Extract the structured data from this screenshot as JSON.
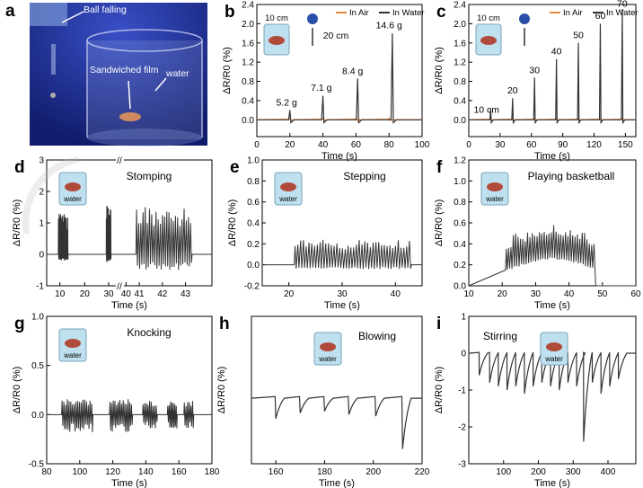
{
  "photo": {
    "label": "a",
    "ball_text": "Ball falling",
    "film_text": "Sandwiched film",
    "water_text": "water"
  },
  "icons": {
    "cup_text": "water"
  },
  "colors": {
    "air": "#e8853a",
    "water": "#333333",
    "photo_bg": "#1c2f95"
  },
  "chart_data": [
    {
      "id": "b",
      "type": "line",
      "xlim": [
        0,
        100
      ],
      "xticks": [
        0,
        20,
        40,
        60,
        80,
        100
      ],
      "ylim": [
        -0.35,
        2.4
      ],
      "yticks": [
        0.0,
        0.4,
        0.8,
        1.2,
        1.6,
        2.0,
        2.4
      ],
      "xlabel": "Time (s)",
      "ylabel": "ΔR/R0 (%)",
      "legend": [
        "In Air",
        "In Water"
      ],
      "series": [
        {
          "name": "In Air",
          "peaks": [
            [
              20,
              0.03
            ],
            [
              40,
              0.03
            ],
            [
              60,
              0.03
            ],
            [
              80,
              0.03
            ]
          ]
        },
        {
          "name": "In Water",
          "peaks": [
            [
              20,
              0.2
            ],
            [
              40,
              0.5
            ],
            [
              61,
              0.86
            ],
            [
              82,
              1.8
            ]
          ]
        }
      ],
      "annotations": [
        {
          "x": 18,
          "y": 0.3,
          "text": "5.2 g"
        },
        {
          "x": 39,
          "y": 0.6,
          "text": "7.1 g"
        },
        {
          "x": 58,
          "y": 0.95,
          "text": "8.4 g"
        },
        {
          "x": 80,
          "y": 1.9,
          "text": "14.6 g"
        }
      ],
      "inset": {
        "height_label": "10 cm",
        "distance_label": "20 cm"
      }
    },
    {
      "id": "c",
      "type": "line",
      "xlim": [
        0,
        160
      ],
      "xticks": [
        0,
        30,
        60,
        90,
        120,
        150
      ],
      "ylim": [
        -0.35,
        2.4
      ],
      "yticks": [
        0.0,
        0.4,
        0.8,
        1.2,
        1.6,
        2.0,
        2.4
      ],
      "xlabel": "Time (s)",
      "ylabel": "ΔR/R0 (%)",
      "legend": [
        "In Air",
        "In Water"
      ],
      "series": [
        {
          "name": "In Air",
          "peaks": [
            [
              21,
              0.03
            ],
            [
              42,
              0.03
            ],
            [
              63,
              0.03
            ],
            [
              84,
              0.03
            ],
            [
              105,
              0.03
            ],
            [
              126,
              0.03
            ],
            [
              147,
              0.03
            ]
          ]
        },
        {
          "name": "In Water",
          "peaks": [
            [
              21,
              0.22
            ],
            [
              42,
              0.45
            ],
            [
              63,
              0.88
            ],
            [
              84,
              1.26
            ],
            [
              105,
              1.6
            ],
            [
              126,
              2.0
            ],
            [
              147,
              2.3
            ]
          ]
        }
      ],
      "annotations": [
        {
          "x": 17,
          "y": 0.15,
          "text": "10 cm"
        },
        {
          "x": 42,
          "y": 0.55,
          "text": "20"
        },
        {
          "x": 63,
          "y": 0.97,
          "text": "30"
        },
        {
          "x": 84,
          "y": 1.36,
          "text": "40"
        },
        {
          "x": 105,
          "y": 1.7,
          "text": "50"
        },
        {
          "x": 126,
          "y": 2.1,
          "text": "60"
        },
        {
          "x": 147,
          "y": 2.35,
          "text": "70"
        }
      ],
      "inset": {
        "height_label": "10 cm"
      }
    },
    {
      "id": "d",
      "type": "line",
      "xlim": [
        0,
        100
      ],
      "xbreak_text": "//",
      "xticks_labeled": [
        [
          8,
          "10"
        ],
        [
          23,
          "20"
        ],
        [
          37.5,
          "30"
        ],
        [
          48,
          "40"
        ],
        [
          56,
          "41"
        ],
        [
          70,
          "42"
        ],
        [
          84,
          "43"
        ]
      ],
      "ylim": [
        -1,
        3
      ],
      "yticks": [
        -1,
        0,
        1,
        2,
        3
      ],
      "xlabel": "Time (s)",
      "ylabel": "ΔR/R0 (%)",
      "title": "Stomping",
      "bursts": [
        {
          "start": 7,
          "end": 13,
          "n": 14,
          "amp": 1.3,
          "neg": 0.2
        },
        {
          "start": 36,
          "end": 39,
          "n": 10,
          "amp": 1.6,
          "neg": 0.25
        },
        {
          "start": 54,
          "end": 88,
          "n": 26,
          "amp": 1.5,
          "neg": 0.5
        }
      ]
    },
    {
      "id": "e",
      "type": "line",
      "xlim": [
        15,
        45
      ],
      "xticks": [
        20,
        30,
        40
      ],
      "ylim": [
        -0.2,
        1.0
      ],
      "yticks": [
        -0.2,
        0.0,
        0.2,
        0.4,
        0.6,
        0.8,
        1.0
      ],
      "xlabel": "Time (s)",
      "ylabel": "ΔR/R0 (%)",
      "title": "Stepping",
      "bursts": [
        {
          "start": 21,
          "end": 43,
          "n": 42,
          "amp": 0.24,
          "neg": 0.04
        }
      ]
    },
    {
      "id": "f",
      "type": "line",
      "xlim": [
        10,
        60
      ],
      "xticks": [
        10,
        20,
        30,
        40,
        50,
        60
      ],
      "ylim": [
        0.0,
        1.2
      ],
      "yticks": [
        0.0,
        0.2,
        0.4,
        0.6,
        0.8,
        1.0,
        1.2
      ],
      "xlabel": "Time (s)",
      "ylabel": "ΔR/R0 (%)",
      "title": "Playing basketball",
      "bursts": [
        {
          "start": 21,
          "end": 48,
          "n": 38,
          "amp": 0.28,
          "neg": 0.05
        }
      ]
    },
    {
      "id": "g",
      "type": "line",
      "xlim": [
        80,
        180
      ],
      "xticks": [
        80,
        100,
        120,
        140,
        160,
        180
      ],
      "ylim": [
        -0.5,
        1.0
      ],
      "yticks": [
        -0.5,
        0.0,
        0.5,
        1.0
      ],
      "xlabel": "Time (s)",
      "ylabel": "ΔR/R0 (%)",
      "title": "Knocking",
      "bursts": [
        {
          "start": 89,
          "end": 108,
          "n": 18,
          "amp": 0.16,
          "neg": 0.18
        },
        {
          "start": 118,
          "end": 132,
          "n": 14,
          "amp": 0.16,
          "neg": 0.18
        },
        {
          "start": 138,
          "end": 147,
          "n": 9,
          "amp": 0.14,
          "neg": 0.14
        },
        {
          "start": 153,
          "end": 159,
          "n": 7,
          "amp": 0.14,
          "neg": 0.14
        },
        {
          "start": 163,
          "end": 169,
          "n": 6,
          "amp": 0.14,
          "neg": 0.14
        }
      ]
    },
    {
      "id": "h",
      "type": "line",
      "xlim": [
        150,
        220
      ],
      "xticks": [
        160,
        180,
        200,
        220
      ],
      "ylim": [
        -0.8,
        1.0
      ],
      "yticks": [],
      "xlabel": "Time (s)",
      "ylabel": "ΔR/R0 (%)",
      "title": "Blowing",
      "dips": [
        [
          160,
          -0.25
        ],
        [
          170,
          -0.18
        ],
        [
          180,
          -0.16
        ],
        [
          190,
          -0.2
        ],
        [
          201,
          -0.22
        ],
        [
          212,
          -0.62
        ]
      ]
    },
    {
      "id": "i",
      "type": "line",
      "xlim": [
        0,
        480
      ],
      "xticks": [
        100,
        200,
        300,
        400
      ],
      "ylim": [
        -3,
        1
      ],
      "yticks": [
        -3,
        -2,
        -1,
        0,
        1
      ],
      "xlabel": "Time (s)",
      "ylabel": "ΔR/R0 (%)",
      "title": "Stirring",
      "dips": [
        [
          30,
          -0.6
        ],
        [
          60,
          -0.8
        ],
        [
          85,
          -0.9
        ],
        [
          110,
          -1.0
        ],
        [
          135,
          -0.9
        ],
        [
          160,
          -1.1
        ],
        [
          185,
          -0.9
        ],
        [
          210,
          -0.8
        ],
        [
          235,
          -0.9
        ],
        [
          260,
          -1.0
        ],
        [
          285,
          -0.8
        ],
        [
          310,
          -0.9
        ],
        [
          330,
          -2.4
        ],
        [
          355,
          -0.8
        ],
        [
          380,
          -1.1
        ],
        [
          405,
          -0.9
        ],
        [
          430,
          -0.7
        ]
      ]
    }
  ]
}
